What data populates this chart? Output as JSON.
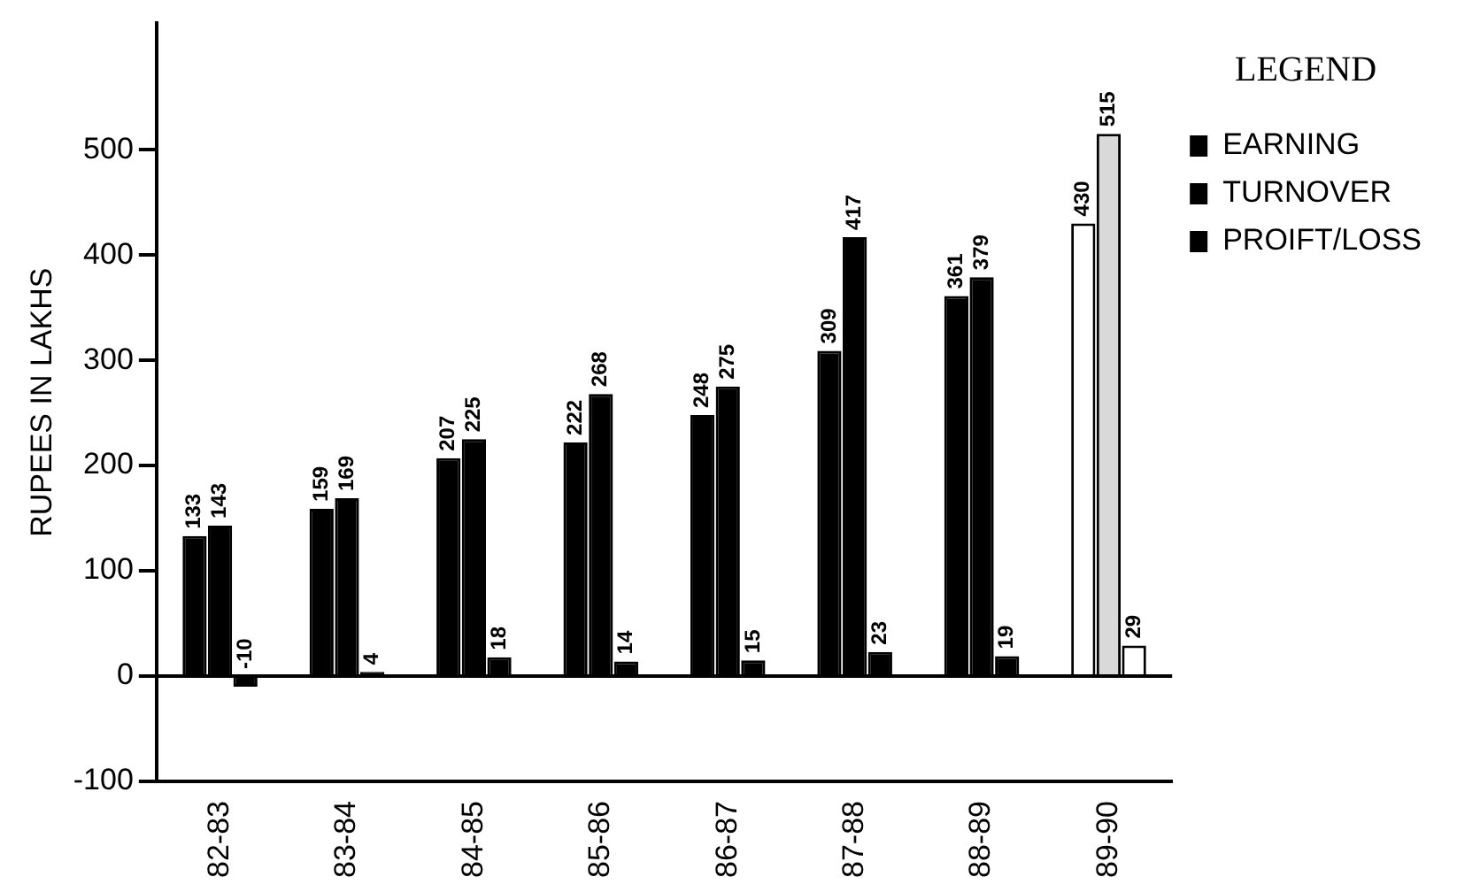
{
  "chart_data": {
    "type": "bar",
    "ylabel": "RUPEES IN LAKHS",
    "legend_title": "LEGEND",
    "categories": [
      "82-83",
      "83-84",
      "84-85",
      "85-86",
      "86-87",
      "87-88",
      "88-89",
      "89-90"
    ],
    "series": [
      {
        "name": "EARNING",
        "color": "#000000",
        "colors": [
          "#000000",
          "#000000",
          "#000000",
          "#000000",
          "#000000",
          "#000000",
          "#000000",
          "#ffffff"
        ],
        "values": [
          133,
          159,
          207,
          222,
          248,
          309,
          361,
          430
        ]
      },
      {
        "name": "TURNOVER",
        "color": "#000000",
        "colors": [
          "#000000",
          "#000000",
          "#000000",
          "#000000",
          "#000000",
          "#000000",
          "#000000",
          "#d9d9d9"
        ],
        "values": [
          143,
          169,
          225,
          268,
          275,
          417,
          379,
          515
        ]
      },
      {
        "name": "PROIFT/LOSS",
        "color": "#000000",
        "colors": [
          "#000000",
          "#000000",
          "#000000",
          "#000000",
          "#000000",
          "#000000",
          "#000000",
          "#ffffff"
        ],
        "values": [
          -10,
          4,
          18,
          14,
          15,
          23,
          19,
          29
        ]
      }
    ],
    "ylim": [
      -100,
      620
    ],
    "yticks": [
      -100,
      0,
      100,
      200,
      300,
      400,
      500
    ],
    "ref_lines": [
      {
        "axis": "y",
        "value": 0,
        "color": "#000000"
      }
    ],
    "data_labels": true,
    "grid": false,
    "legend": "right"
  }
}
